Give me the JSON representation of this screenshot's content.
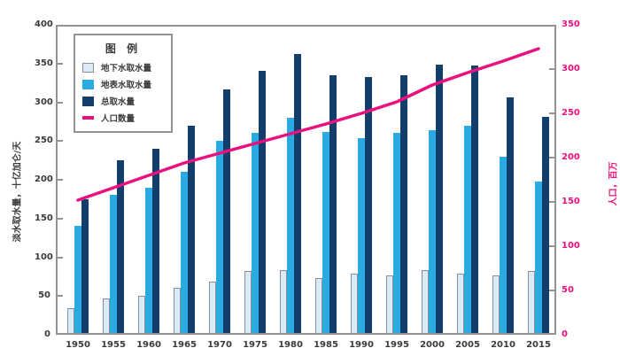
{
  "chart_data": {
    "type": "bar",
    "title": "",
    "categories": [
      "1950",
      "1955",
      "1960",
      "1965",
      "1970",
      "1975",
      "1980",
      "1985",
      "1990",
      "1995",
      "2000",
      "2005",
      "2010",
      "2015"
    ],
    "series": [
      {
        "name": "地下水取水量",
        "kind": "bar",
        "axis": "left",
        "color": "#daeaf6",
        "values": [
          34,
          47,
          50,
          60,
          68,
          82,
          83,
          73,
          79,
          76,
          83,
          79,
          76,
          82
        ]
      },
      {
        "name": "地表水取水量",
        "kind": "bar",
        "axis": "left",
        "color": "#29abe2",
        "values": [
          140,
          180,
          190,
          210,
          250,
          260,
          280,
          262,
          254,
          260,
          264,
          270,
          230,
          198
        ]
      },
      {
        "name": "总取水量",
        "kind": "bar",
        "axis": "left",
        "color": "#123e6c",
        "values": [
          175,
          225,
          240,
          270,
          317,
          340,
          362,
          335,
          333,
          335,
          348,
          347,
          306,
          281
        ]
      },
      {
        "name": "人口数量",
        "kind": "line",
        "axis": "right",
        "color": "#ea117f",
        "values": [
          152,
          166,
          180,
          194,
          205,
          216,
          227,
          238,
          250,
          263,
          282,
          296,
          309,
          323
        ]
      }
    ],
    "left_axis": {
      "label": "淡水取水量，十亿加仑/天",
      "min": 0,
      "max": 400,
      "step": 50
    },
    "right_axis": {
      "label": "人口，百万",
      "min": 0,
      "max": 350,
      "step": 50
    },
    "legend": {
      "title": "图 例",
      "position": "top-left",
      "border": true
    },
    "grid": false,
    "frame_color": "#8f9499"
  }
}
